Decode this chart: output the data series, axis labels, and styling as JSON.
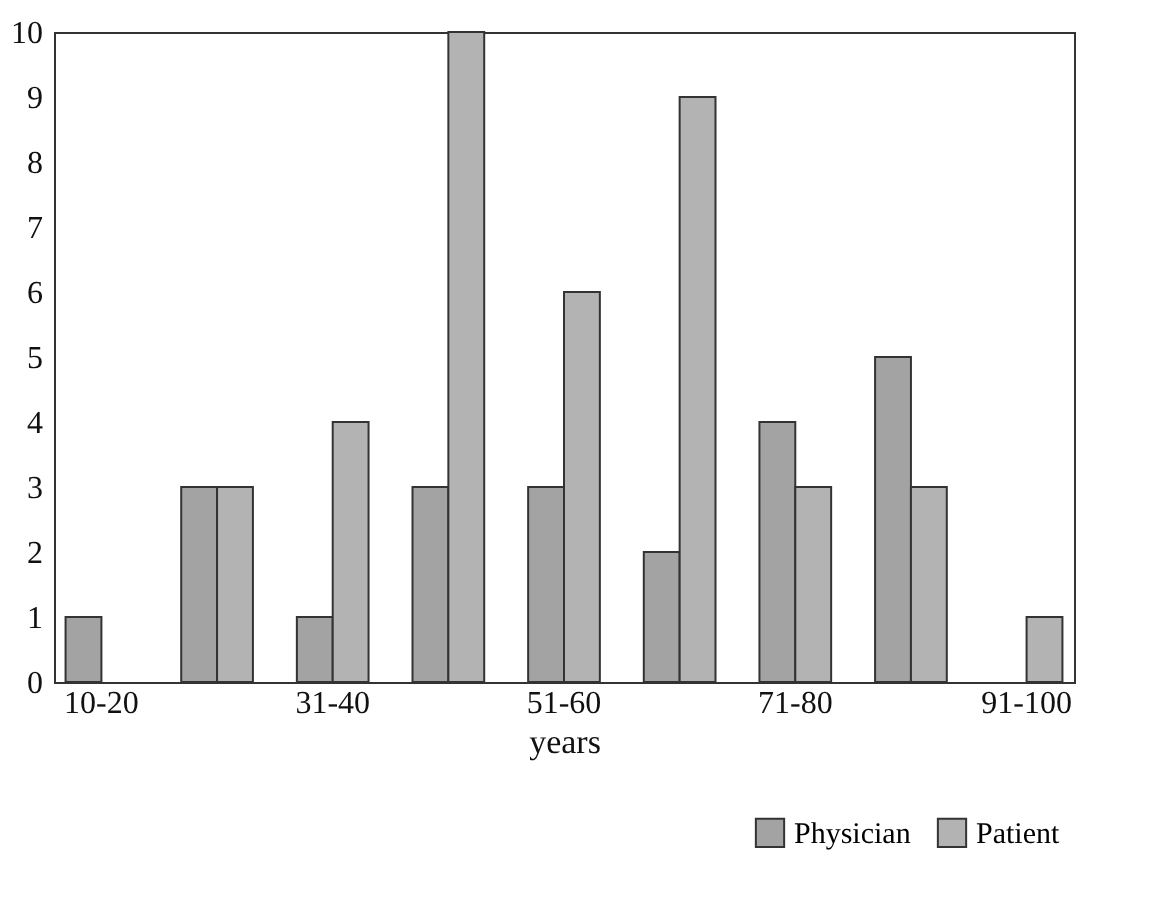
{
  "chart_data": {
    "type": "bar",
    "xlabel": "years",
    "categories": [
      "10-20",
      null,
      "31-40",
      null,
      "51-60",
      null,
      "71-80",
      null,
      "91-100"
    ],
    "series": [
      {
        "name": "Physician",
        "color": "#a3a3a3",
        "values": [
          1,
          3,
          1,
          3,
          3,
          2,
          4,
          5,
          null
        ]
      },
      {
        "name": "Patient",
        "color": "#b3b3b3",
        "values": [
          null,
          3,
          4,
          10,
          6,
          9,
          3,
          3,
          1
        ]
      }
    ],
    "ylim": [
      0,
      10
    ],
    "yticks": [
      0,
      1,
      2,
      3,
      4,
      5,
      6,
      7,
      8,
      9,
      10
    ],
    "grid": false,
    "legend": "bottom right"
  }
}
